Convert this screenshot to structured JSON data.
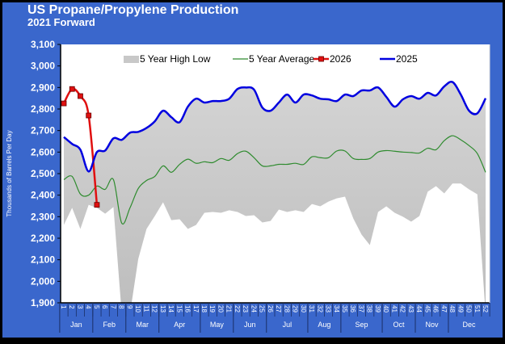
{
  "chart_data": {
    "type": "line",
    "title": "US Propane/Propylene Production",
    "subtitle": "2021 Forward",
    "ylabel": "Thousands of Barrels Per Day",
    "xlabel": "",
    "ylim": [
      1900,
      3100
    ],
    "yticks": [
      "1,900",
      "2,000",
      "2,100",
      "2,200",
      "2,300",
      "2,400",
      "2,500",
      "2,600",
      "2,700",
      "2,800",
      "2,900",
      "3,000",
      "3,100"
    ],
    "x_weeks": [
      1,
      2,
      3,
      4,
      5,
      6,
      7,
      8,
      9,
      10,
      11,
      12,
      13,
      14,
      15,
      16,
      17,
      18,
      19,
      20,
      21,
      22,
      23,
      24,
      25,
      26,
      27,
      28,
      29,
      30,
      31,
      32,
      33,
      34,
      35,
      36,
      37,
      38,
      39,
      40,
      41,
      42,
      43,
      44,
      45,
      46,
      47,
      48,
      49,
      50,
      51,
      52
    ],
    "months": [
      {
        "label": "Jan",
        "weeks": [
          1,
          4
        ]
      },
      {
        "label": "Feb",
        "weeks": [
          5,
          8
        ]
      },
      {
        "label": "Mar",
        "weeks": [
          9,
          12
        ]
      },
      {
        "label": "Apr",
        "weeks": [
          13,
          17
        ]
      },
      {
        "label": "May",
        "weeks": [
          18,
          21
        ]
      },
      {
        "label": "Jun",
        "weeks": [
          22,
          25
        ]
      },
      {
        "label": "Jul",
        "weeks": [
          26,
          30
        ]
      },
      {
        "label": "Aug",
        "weeks": [
          31,
          34
        ]
      },
      {
        "label": "Sep",
        "weeks": [
          35,
          39
        ]
      },
      {
        "label": "Oct",
        "weeks": [
          40,
          43
        ]
      },
      {
        "label": "Nov",
        "weeks": [
          44,
          47
        ]
      },
      {
        "label": "Dec",
        "weeks": [
          48,
          52
        ]
      }
    ],
    "legend_position": "top",
    "grid": false,
    "band": {
      "name": "5 Year High Low",
      "color": "#C8C8C8",
      "high": [
        2670,
        2638,
        2611,
        2510,
        2600,
        2607,
        2664,
        2657,
        2690,
        2694,
        2712,
        2743,
        2792,
        2762,
        2739,
        2811,
        2848,
        2830,
        2837,
        2837,
        2848,
        2893,
        2900,
        2890,
        2807,
        2792,
        2830,
        2867,
        2830,
        2867,
        2863,
        2848,
        2845,
        2837,
        2867,
        2860,
        2886,
        2886,
        2900,
        2856,
        2811,
        2845,
        2860,
        2848,
        2875,
        2863,
        2905,
        2925,
        2867,
        2792,
        2780,
        2850
      ],
      "low": [
        2262,
        2341,
        2243,
        2355,
        2341,
        2314,
        2345,
        1850,
        1850,
        2104,
        2243,
        2303,
        2367,
        2284,
        2288,
        2243,
        2262,
        2318,
        2322,
        2318,
        2330,
        2322,
        2303,
        2307,
        2273,
        2280,
        2333,
        2322,
        2330,
        2322,
        2359,
        2348,
        2370,
        2385,
        2393,
        2292,
        2217,
        2168,
        2322,
        2348,
        2318,
        2300,
        2277,
        2303,
        2416,
        2442,
        2408,
        2454,
        2454,
        2427,
        2404,
        1850
      ]
    },
    "series": [
      {
        "name": "5 Year Average",
        "color": "#2E8B2E",
        "values": [
          2472,
          2487,
          2405,
          2400,
          2442,
          2427,
          2472,
          2270,
          2341,
          2431,
          2468,
          2487,
          2536,
          2506,
          2543,
          2567,
          2548,
          2555,
          2551,
          2570,
          2562,
          2593,
          2604,
          2574,
          2536,
          2536,
          2543,
          2543,
          2548,
          2543,
          2578,
          2574,
          2574,
          2605,
          2605,
          2570,
          2566,
          2570,
          2600,
          2607,
          2604,
          2600,
          2598,
          2596,
          2618,
          2611,
          2653,
          2676,
          2657,
          2630,
          2593,
          2506
        ]
      },
      {
        "name": "2026",
        "color": "#E01010",
        "marker": "square",
        "values": [
          2826,
          2893,
          2860,
          2770,
          2355
        ]
      },
      {
        "name": "2025",
        "color": "#0000E0",
        "values": [
          2670,
          2638,
          2611,
          2510,
          2600,
          2607,
          2664,
          2657,
          2690,
          2694,
          2712,
          2743,
          2792,
          2762,
          2739,
          2811,
          2848,
          2830,
          2837,
          2837,
          2848,
          2893,
          2900,
          2890,
          2807,
          2792,
          2830,
          2867,
          2830,
          2867,
          2863,
          2848,
          2845,
          2837,
          2867,
          2860,
          2886,
          2886,
          2900,
          2856,
          2811,
          2845,
          2860,
          2848,
          2875,
          2863,
          2905,
          2925,
          2867,
          2792,
          2780,
          2850
        ]
      }
    ]
  }
}
